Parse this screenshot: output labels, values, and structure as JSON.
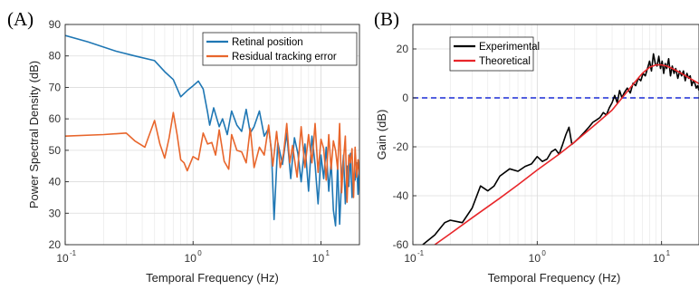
{
  "chart_data": [
    {
      "type": "line",
      "panel_label": "(A)",
      "xlabel": "Temporal Frequency (Hz)",
      "ylabel": "Power Spectral Density (dB)",
      "xscale": "log",
      "xlim": [
        0.1,
        20
      ],
      "ylim": [
        20,
        90
      ],
      "xticks": [
        {
          "value": 0.1,
          "base": "10",
          "exp": "-1"
        },
        {
          "value": 1,
          "base": "10",
          "exp": "0"
        },
        {
          "value": 10,
          "base": "10",
          "exp": "1"
        }
      ],
      "yticks": [
        "20",
        "30",
        "40",
        "50",
        "60",
        "70",
        "80",
        "90"
      ],
      "grid": true,
      "legend_position": "top-right",
      "series": [
        {
          "name": "Retinal position",
          "color": "#1f77b4",
          "x": [
            0.1,
            0.15,
            0.25,
            0.35,
            0.5,
            0.6,
            0.7,
            0.8,
            0.9,
            1.0,
            1.1,
            1.2,
            1.3,
            1.35,
            1.45,
            1.6,
            1.7,
            1.85,
            2.0,
            2.2,
            2.4,
            2.6,
            2.8,
            3.0,
            3.3,
            3.6,
            3.9,
            4.1,
            4.3,
            4.6,
            5.0,
            5.4,
            5.8,
            6.2,
            6.6,
            7.0,
            7.5,
            8.0,
            8.5,
            9.0,
            9.5,
            10.0,
            10.5,
            11.0,
            11.5,
            12.0,
            12.5,
            13.0,
            13.5,
            14.0,
            14.5,
            15.0,
            15.5,
            16.0,
            16.5,
            17.0,
            17.5,
            18.0,
            18.5,
            19.0,
            19.5,
            20.0
          ],
          "y": [
            86.5,
            84.5,
            81.5,
            80.0,
            78.5,
            75.0,
            72.5,
            67.0,
            69.0,
            70.5,
            72.0,
            69.5,
            62.0,
            58.0,
            63.5,
            57.5,
            60.0,
            55.0,
            62.5,
            58.0,
            56.0,
            63.0,
            55.5,
            57.5,
            62.5,
            54.5,
            57.0,
            50.0,
            28.0,
            52.5,
            45.5,
            55.5,
            41.0,
            54.0,
            49.0,
            40.0,
            52.0,
            37.0,
            54.5,
            45.5,
            33.0,
            48.5,
            41.0,
            51.0,
            37.0,
            46.5,
            31.0,
            26.0,
            45.5,
            26.5,
            41.0,
            48.5,
            33.0,
            45.0,
            38.5,
            49.0,
            35.0,
            42.0,
            40.5,
            46.0,
            36.0,
            45.5
          ]
        },
        {
          "name": "Residual tracking error",
          "color": "#e8662c",
          "x": [
            0.1,
            0.2,
            0.3,
            0.35,
            0.42,
            0.5,
            0.55,
            0.6,
            0.65,
            0.7,
            0.75,
            0.8,
            0.85,
            0.9,
            1.0,
            1.1,
            1.2,
            1.3,
            1.4,
            1.5,
            1.6,
            1.75,
            1.9,
            2.0,
            2.2,
            2.4,
            2.6,
            2.8,
            3.0,
            3.3,
            3.6,
            3.9,
            4.2,
            4.5,
            4.8,
            5.1,
            5.4,
            5.7,
            6.0,
            6.5,
            7.0,
            7.5,
            8.0,
            8.5,
            9.0,
            9.5,
            10.0,
            10.5,
            11.0,
            11.5,
            12.0,
            12.5,
            13.0,
            13.5,
            14.0,
            14.5,
            15.0,
            15.5,
            16.0,
            16.5,
            17.0,
            17.5,
            18.0,
            18.5,
            19.0,
            19.5,
            20.0
          ],
          "y": [
            54.5,
            55.0,
            55.5,
            53.0,
            51.0,
            59.5,
            52.0,
            47.5,
            54.0,
            62.0,
            55.0,
            47.0,
            46.0,
            43.5,
            48.0,
            47.0,
            55.5,
            52.0,
            52.5,
            48.5,
            56.5,
            46.5,
            44.0,
            55.0,
            50.0,
            49.5,
            46.0,
            57.0,
            44.5,
            51.0,
            48.5,
            58.0,
            45.0,
            56.0,
            44.5,
            49.0,
            58.5,
            46.0,
            51.5,
            41.5,
            57.5,
            44.5,
            55.0,
            46.0,
            58.5,
            43.0,
            53.5,
            50.5,
            40.5,
            55.0,
            44.0,
            53.0,
            50.0,
            44.0,
            58.5,
            36.5,
            47.0,
            54.5,
            33.5,
            48.5,
            46.0,
            50.5,
            35.0,
            51.0,
            41.5,
            47.0,
            42.0
          ]
        }
      ]
    },
    {
      "type": "line",
      "panel_label": "(B)",
      "xlabel": "Temporal Frequency (Hz)",
      "ylabel": "Gain (dB)",
      "xscale": "log",
      "xlim": [
        0.1,
        20
      ],
      "ylim": [
        -60,
        30
      ],
      "xticks": [
        {
          "value": 0.1,
          "base": "10",
          "exp": "-1"
        },
        {
          "value": 1,
          "base": "10",
          "exp": "0"
        },
        {
          "value": 10,
          "base": "10",
          "exp": "1"
        }
      ],
      "yticks": [
        "-60",
        "-40",
        "-20",
        "0",
        "20"
      ],
      "grid": true,
      "legend_position": "top-left",
      "reference_line": {
        "y": 0,
        "color": "#1a2bd6",
        "style": "dashed"
      },
      "series": [
        {
          "name": "Experimental",
          "color": "#000000",
          "x": [
            0.12,
            0.15,
            0.18,
            0.2,
            0.25,
            0.3,
            0.35,
            0.4,
            0.45,
            0.5,
            0.6,
            0.7,
            0.8,
            0.9,
            1.0,
            1.1,
            1.2,
            1.3,
            1.4,
            1.5,
            1.6,
            1.7,
            1.8,
            1.9,
            2.0,
            2.2,
            2.4,
            2.6,
            2.8,
            3.0,
            3.2,
            3.4,
            3.6,
            3.8,
            4.0,
            4.2,
            4.4,
            4.6,
            4.8,
            5.0,
            5.3,
            5.6,
            5.9,
            6.2,
            6.5,
            6.8,
            7.1,
            7.4,
            7.7,
            8.0,
            8.3,
            8.6,
            8.9,
            9.2,
            9.5,
            9.8,
            10.1,
            10.4,
            10.7,
            11.0,
            11.4,
            11.8,
            12.2,
            12.6,
            13.0,
            13.5,
            14.0,
            14.5,
            15.0,
            15.5,
            16.0,
            16.5,
            17.0,
            17.5,
            18.0,
            18.5,
            19.0,
            19.5,
            20.0
          ],
          "y": [
            -60,
            -56,
            -51,
            -50,
            -51,
            -45,
            -36,
            -38,
            -36,
            -32,
            -29,
            -30,
            -28,
            -27,
            -24,
            -26,
            -25,
            -22,
            -21,
            -23,
            -19,
            -15,
            -12,
            -19,
            -18,
            -16,
            -14,
            -12,
            -10,
            -9,
            -8,
            -6,
            -7,
            -4,
            -2,
            1,
            -2,
            3,
            0,
            2,
            4,
            2,
            6,
            5,
            8,
            7,
            10,
            9,
            12,
            15,
            11,
            18,
            14,
            13,
            17,
            12,
            15,
            10,
            14,
            12,
            16,
            9,
            13,
            10,
            12,
            8,
            11,
            9,
            11,
            7,
            10,
            8,
            9,
            5,
            7,
            6,
            4,
            5,
            3
          ]
        },
        {
          "name": "Theoretical",
          "color": "#e8262a",
          "x": [
            0.15,
            0.2,
            0.3,
            0.5,
            0.7,
            1.0,
            1.5,
            2.0,
            3.0,
            4.0,
            5.0,
            6.0,
            7.0,
            8.0,
            9.0,
            10.0,
            11.0,
            12.0,
            13.0,
            14.0,
            15.0,
            16.0,
            17.0,
            18.0,
            19.0,
            20.0
          ],
          "y": [
            -60,
            -55.5,
            -49,
            -41,
            -35.5,
            -29.5,
            -23,
            -18,
            -10.5,
            -5,
            1,
            6,
            10,
            12.5,
            13.5,
            13.5,
            13,
            12.2,
            11.3,
            10.4,
            9.5,
            8.7,
            7.9,
            7.2,
            6.5,
            5.8
          ]
        }
      ]
    }
  ]
}
